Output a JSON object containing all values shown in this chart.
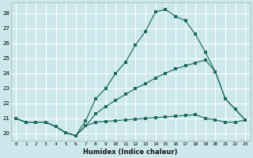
{
  "xlabel": "Humidex (Indice chaleur)",
  "background_color": "#cce8ec",
  "grid_color": "#ffffff",
  "line_color": "#1e6b5e",
  "xlim": [
    -0.5,
    23.5
  ],
  "ylim": [
    19.5,
    28.7
  ],
  "xticks": [
    0,
    1,
    2,
    3,
    4,
    5,
    6,
    7,
    8,
    9,
    10,
    11,
    12,
    13,
    14,
    15,
    16,
    17,
    18,
    19,
    20,
    21,
    22,
    23
  ],
  "yticks": [
    20,
    21,
    22,
    23,
    24,
    25,
    26,
    27,
    28
  ],
  "line1_x": [
    0,
    1,
    2,
    3,
    4,
    5,
    6,
    7,
    8,
    9,
    10,
    11,
    12,
    13,
    14,
    15,
    16,
    17,
    18,
    19,
    20,
    21,
    22,
    23
  ],
  "line1_y": [
    21.0,
    20.75,
    20.75,
    20.75,
    20.45,
    20.05,
    19.85,
    20.5,
    20.75,
    20.8,
    20.85,
    20.9,
    20.95,
    21.0,
    21.05,
    21.1,
    21.15,
    21.2,
    21.25,
    21.0,
    20.9,
    20.75,
    20.75,
    20.9
  ],
  "line2_x": [
    0,
    1,
    2,
    3,
    4,
    5,
    6,
    7,
    8,
    9,
    10,
    11,
    12,
    13,
    14,
    15,
    16,
    17,
    18,
    19,
    20,
    21,
    22,
    23
  ],
  "line2_y": [
    21.0,
    20.75,
    20.75,
    20.75,
    20.45,
    20.05,
    19.85,
    20.5,
    21.3,
    21.8,
    22.2,
    22.6,
    23.0,
    23.3,
    23.7,
    24.0,
    24.3,
    24.5,
    24.7,
    24.9,
    24.1,
    22.3,
    21.6,
    20.9
  ],
  "line3_x": [
    0,
    1,
    2,
    3,
    4,
    5,
    6,
    7,
    8,
    9,
    10,
    11,
    12,
    13,
    14,
    15,
    16,
    17,
    18,
    19,
    20,
    21,
    22,
    23
  ],
  "line3_y": [
    21.0,
    20.75,
    20.75,
    20.75,
    20.45,
    20.05,
    19.85,
    20.85,
    22.3,
    23.0,
    24.0,
    24.75,
    25.9,
    26.8,
    28.1,
    28.25,
    27.8,
    27.5,
    26.6,
    25.4,
    24.1,
    22.3,
    21.6,
    20.9
  ]
}
